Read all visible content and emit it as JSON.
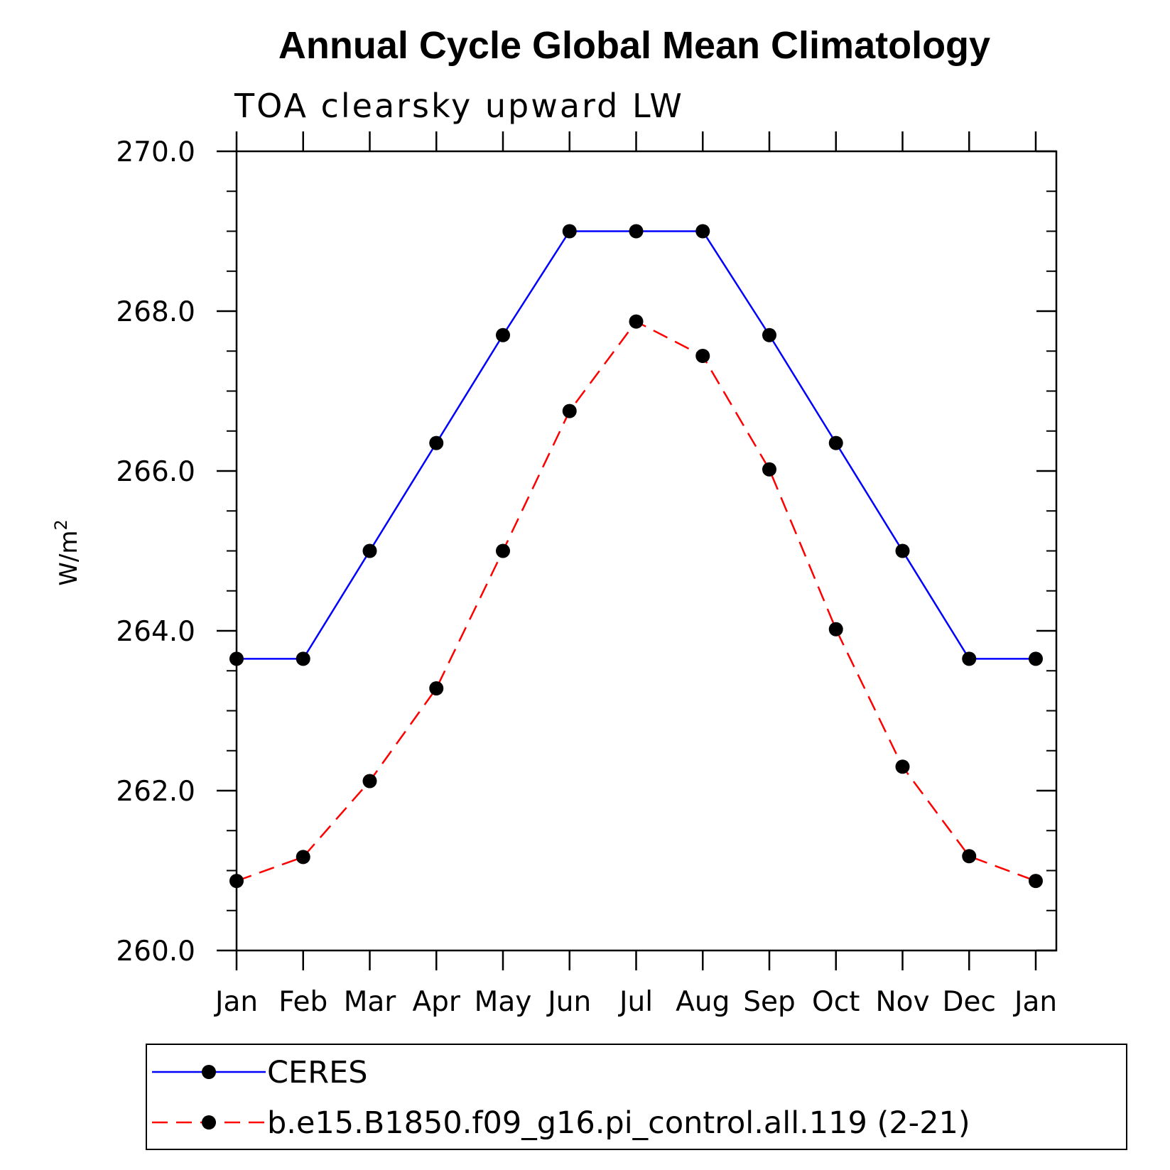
{
  "chart_data": {
    "type": "line",
    "title": "Annual Cycle Global Mean Climatology",
    "subtitle": "TOA clearsky upward LW",
    "ylabel": "W/m",
    "ylabel_superscript": "2",
    "categories": [
      "Jan",
      "Feb",
      "Mar",
      "Apr",
      "May",
      "Jun",
      "Jul",
      "Aug",
      "Sep",
      "Oct",
      "Nov",
      "Dec",
      "Jan"
    ],
    "ylim": [
      260,
      270
    ],
    "yticks": [
      "260.0",
      "262.0",
      "264.0",
      "266.0",
      "268.0",
      "270.0"
    ],
    "ytick_values": [
      260,
      262,
      264,
      266,
      268,
      270
    ],
    "grid": false,
    "legend_position": "bottom",
    "series": [
      {
        "name": "CERES",
        "color": "#0000ff",
        "line_style": "solid",
        "values": [
          263.65,
          263.65,
          265.0,
          266.35,
          267.7,
          269.0,
          269.0,
          269.0,
          267.7,
          266.35,
          265.0,
          263.65,
          263.65
        ]
      },
      {
        "name": "b.e15.B1850.f09_g16.pi_control.all.119 (2-21)",
        "color": "#ff0000",
        "line_style": "dashed",
        "values": [
          260.87,
          261.17,
          262.12,
          263.28,
          265.0,
          266.75,
          267.87,
          267.44,
          266.02,
          264.02,
          262.3,
          261.18,
          260.87
        ]
      }
    ]
  }
}
